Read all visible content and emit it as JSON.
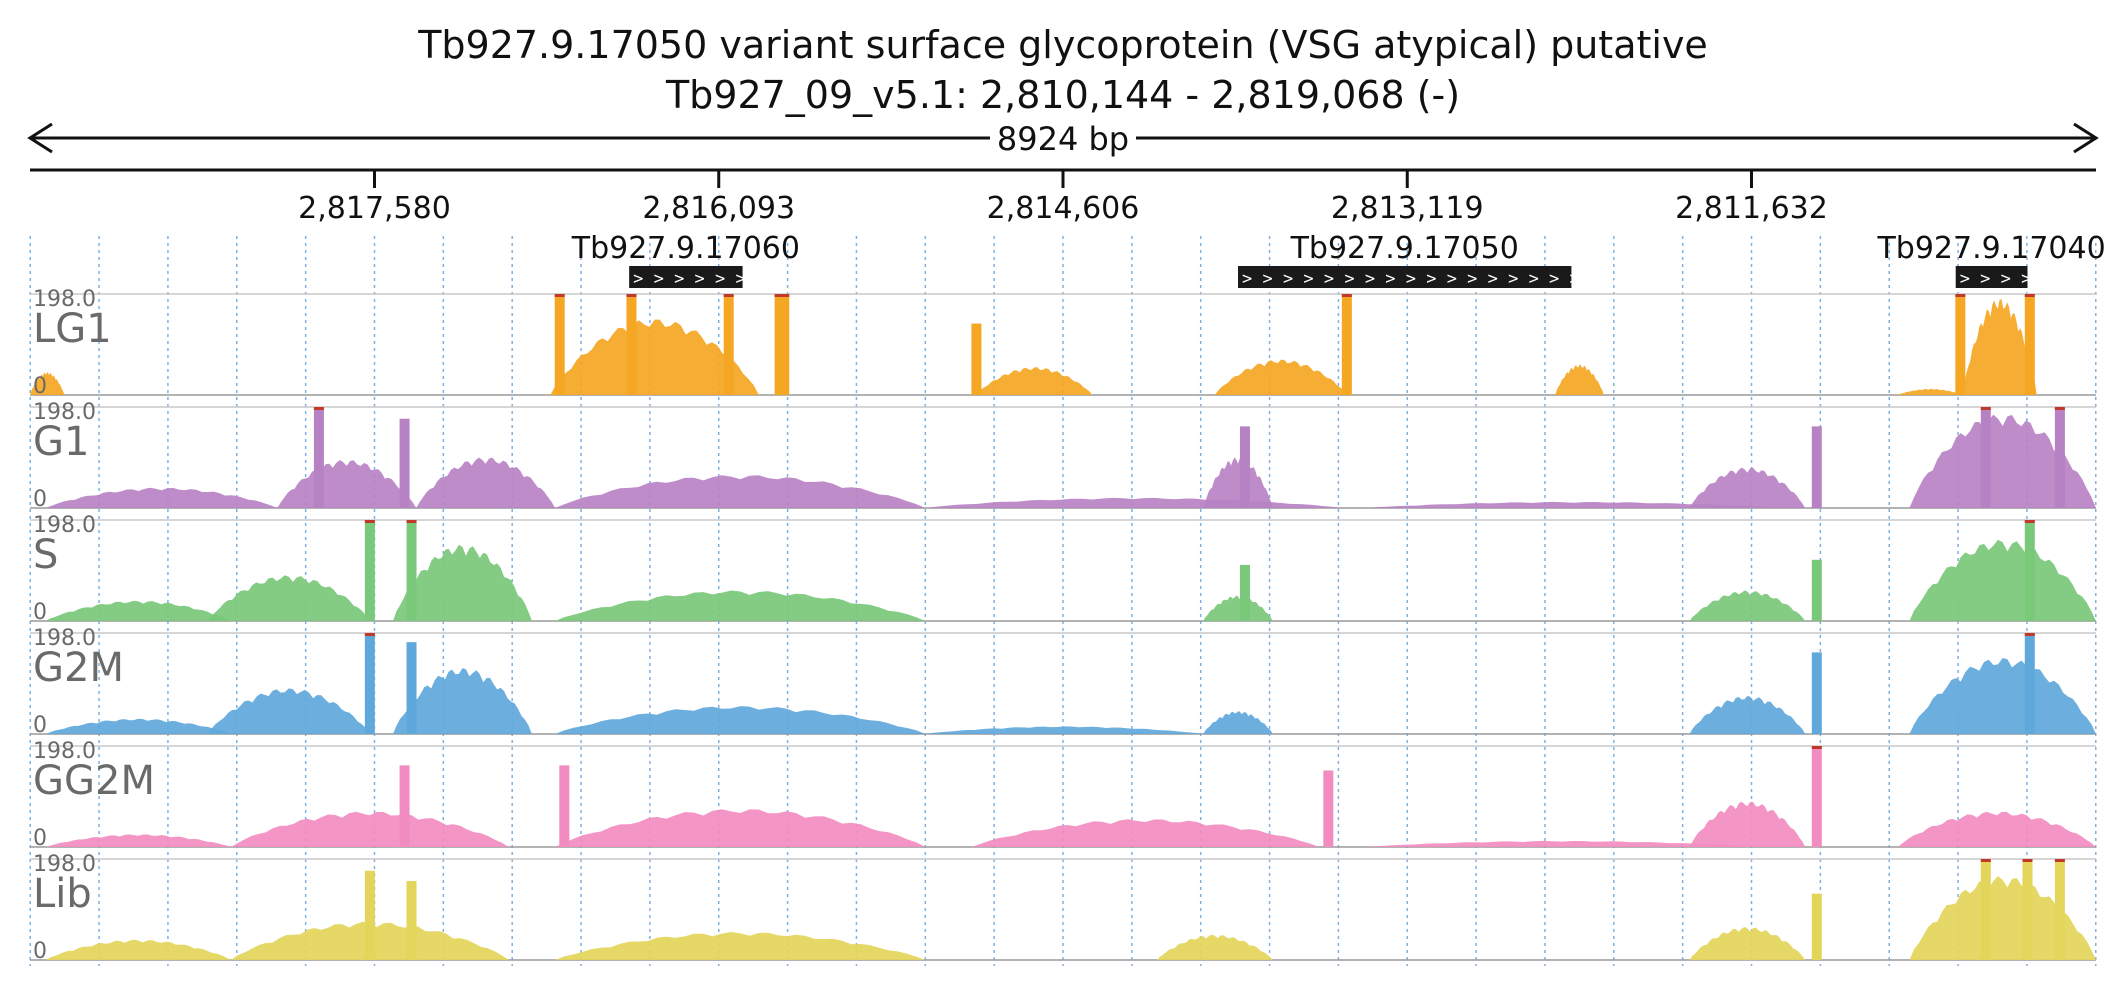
{
  "header": {
    "title_line1": "Tb927.9.17050  variant surface glycoprotein (VSG  atypical)  putative",
    "title_line2": "Tb927_09_v5.1: 2,810,144 - 2,819,068 (-)",
    "length_label": "8924 bp"
  },
  "chart_data": {
    "type": "area",
    "title": "Tb927.9.17050  variant surface glycoprotein (VSG  atypical)  putative",
    "subtitle": "Tb927_09_v5.1: 2,810,144 - 2,819,068 (-)",
    "xlabel": "",
    "ylabel": "",
    "x_start": 2819068,
    "x_end": 2810144,
    "x_reversed": true,
    "ticks": [
      {
        "pos": 2817580,
        "label": "2,817,580"
      },
      {
        "pos": 2816093,
        "label": "2,816,093"
      },
      {
        "pos": 2814606,
        "label": "2,814,606"
      },
      {
        "pos": 2813119,
        "label": "2,813,119"
      },
      {
        "pos": 2811632,
        "label": "2,811,632"
      }
    ],
    "grid": true,
    "genes": [
      {
        "name": "Tb927.9.17060",
        "start": 2816480,
        "end": 2815990,
        "arrows": "> > > > > >"
      },
      {
        "name": "Tb927.9.17050",
        "start": 2813850,
        "end": 2812410,
        "arrows": "> > > > > > > > > > > > > > > > > > >"
      },
      {
        "name": "Tb927.9.17040",
        "start": 2810750,
        "end": 2810440,
        "arrows": "> > > >"
      }
    ],
    "tracks": [
      {
        "name": "LG1",
        "color": "#f5a623",
        "ymax": 198.0,
        "ymax_label": "198.0",
        "ymin_label": "0",
        "features": [
          {
            "type": "bump",
            "start": 2819068,
            "end": 2818920,
            "peak": 45
          },
          {
            "type": "bump",
            "start": 2816820,
            "end": 2815920,
            "peak": 150
          },
          {
            "type": "spike",
            "pos": 2816780,
            "height": 198
          },
          {
            "type": "spike",
            "pos": 2816470,
            "height": 198
          },
          {
            "type": "spike",
            "pos": 2816050,
            "height": 198
          },
          {
            "type": "spike",
            "pos": 2815810,
            "height": 198
          },
          {
            "type": "spike",
            "pos": 2815830,
            "height": 198
          },
          {
            "type": "spike",
            "pos": 2814980,
            "height": 140
          },
          {
            "type": "bump",
            "start": 2814980,
            "end": 2814480,
            "peak": 55
          },
          {
            "type": "bump",
            "start": 2813950,
            "end": 2813380,
            "peak": 70
          },
          {
            "type": "spike",
            "pos": 2813380,
            "height": 198
          },
          {
            "type": "bump",
            "start": 2812480,
            "end": 2812270,
            "peak": 60
          },
          {
            "type": "bump",
            "start": 2811000,
            "end": 2810720,
            "peak": 12
          },
          {
            "type": "bump",
            "start": 2810720,
            "end": 2810400,
            "peak": 190
          },
          {
            "type": "spike",
            "pos": 2810730,
            "height": 198
          },
          {
            "type": "spike",
            "pos": 2810430,
            "height": 198
          }
        ]
      },
      {
        "name": "G1",
        "color": "#b782c4",
        "ymax": 198.0,
        "ymax_label": "198.0",
        "ymin_label": "0",
        "features": [
          {
            "type": "bump",
            "start": 2819000,
            "end": 2818000,
            "peak": 40
          },
          {
            "type": "bump",
            "start": 2818000,
            "end": 2817400,
            "peak": 95
          },
          {
            "type": "bump",
            "start": 2817400,
            "end": 2816800,
            "peak": 100
          },
          {
            "type": "bump",
            "start": 2816800,
            "end": 2815200,
            "peak": 65
          },
          {
            "type": "bump",
            "start": 2815200,
            "end": 2813400,
            "peak": 20
          },
          {
            "type": "bump",
            "start": 2814000,
            "end": 2813700,
            "peak": 100
          },
          {
            "type": "bump",
            "start": 2813300,
            "end": 2811500,
            "peak": 12
          },
          {
            "type": "bump",
            "start": 2811900,
            "end": 2811400,
            "peak": 80
          },
          {
            "type": "bump",
            "start": 2810950,
            "end": 2810144,
            "peak": 185
          },
          {
            "type": "spike",
            "pos": 2817820,
            "height": 198
          },
          {
            "type": "spike",
            "pos": 2817450,
            "height": 175
          },
          {
            "type": "spike",
            "pos": 2813820,
            "height": 160
          },
          {
            "type": "spike",
            "pos": 2811350,
            "height": 160
          },
          {
            "type": "spike",
            "pos": 2810620,
            "height": 198
          },
          {
            "type": "spike",
            "pos": 2810300,
            "height": 198
          }
        ]
      },
      {
        "name": "S",
        "color": "#7ac87a",
        "ymax": 198.0,
        "ymax_label": "198.0",
        "ymin_label": "0",
        "features": [
          {
            "type": "bump",
            "start": 2819000,
            "end": 2818200,
            "peak": 40
          },
          {
            "type": "bump",
            "start": 2818300,
            "end": 2817600,
            "peak": 90
          },
          {
            "type": "bump",
            "start": 2817500,
            "end": 2816900,
            "peak": 150
          },
          {
            "type": "bump",
            "start": 2816800,
            "end": 2815200,
            "peak": 60
          },
          {
            "type": "bump",
            "start": 2814000,
            "end": 2813700,
            "peak": 50
          },
          {
            "type": "bump",
            "start": 2811900,
            "end": 2811400,
            "peak": 60
          },
          {
            "type": "bump",
            "start": 2810950,
            "end": 2810144,
            "peak": 160
          },
          {
            "type": "spike",
            "pos": 2817600,
            "height": 198
          },
          {
            "type": "spike",
            "pos": 2817420,
            "height": 198
          },
          {
            "type": "spike",
            "pos": 2813820,
            "height": 110
          },
          {
            "type": "spike",
            "pos": 2811350,
            "height": 120
          },
          {
            "type": "spike",
            "pos": 2810430,
            "height": 198
          }
        ]
      },
      {
        "name": "G2M",
        "color": "#5fa8dc",
        "ymax": 198.0,
        "ymax_label": "198.0",
        "ymin_label": "0",
        "features": [
          {
            "type": "bump",
            "start": 2819000,
            "end": 2818200,
            "peak": 30
          },
          {
            "type": "bump",
            "start": 2818300,
            "end": 2817600,
            "peak": 90
          },
          {
            "type": "bump",
            "start": 2817500,
            "end": 2816900,
            "peak": 130
          },
          {
            "type": "bump",
            "start": 2816800,
            "end": 2815200,
            "peak": 55
          },
          {
            "type": "bump",
            "start": 2815200,
            "end": 2814000,
            "peak": 15
          },
          {
            "type": "bump",
            "start": 2814000,
            "end": 2813700,
            "peak": 45
          },
          {
            "type": "bump",
            "start": 2811900,
            "end": 2811400,
            "peak": 75
          },
          {
            "type": "bump",
            "start": 2810950,
            "end": 2810144,
            "peak": 150
          },
          {
            "type": "spike",
            "pos": 2817600,
            "height": 198
          },
          {
            "type": "spike",
            "pos": 2817420,
            "height": 180
          },
          {
            "type": "spike",
            "pos": 2811350,
            "height": 160
          },
          {
            "type": "spike",
            "pos": 2810430,
            "height": 198
          }
        ]
      },
      {
        "name": "GG2M",
        "color": "#f28cc0",
        "ymax": 198.0,
        "ymax_label": "198.0",
        "ymin_label": "0",
        "features": [
          {
            "type": "bump",
            "start": 2819000,
            "end": 2818200,
            "peak": 25
          },
          {
            "type": "bump",
            "start": 2818200,
            "end": 2817000,
            "peak": 70
          },
          {
            "type": "bump",
            "start": 2816800,
            "end": 2815200,
            "peak": 75
          },
          {
            "type": "bump",
            "start": 2815000,
            "end": 2813500,
            "peak": 55
          },
          {
            "type": "bump",
            "start": 2813300,
            "end": 2811600,
            "peak": 12
          },
          {
            "type": "bump",
            "start": 2811900,
            "end": 2811400,
            "peak": 90
          },
          {
            "type": "bump",
            "start": 2811000,
            "end": 2810144,
            "peak": 70
          },
          {
            "type": "spike",
            "pos": 2817450,
            "height": 160
          },
          {
            "type": "spike",
            "pos": 2816760,
            "height": 160
          },
          {
            "type": "spike",
            "pos": 2813460,
            "height": 150
          },
          {
            "type": "spike",
            "pos": 2811350,
            "height": 198
          }
        ]
      },
      {
        "name": "Lib",
        "color": "#e3d55a",
        "ymax": 198.0,
        "ymax_label": "198.0",
        "ymin_label": "0",
        "features": [
          {
            "type": "bump",
            "start": 2819000,
            "end": 2818200,
            "peak": 40
          },
          {
            "type": "bump",
            "start": 2818200,
            "end": 2817000,
            "peak": 75
          },
          {
            "type": "bump",
            "start": 2816800,
            "end": 2815200,
            "peak": 55
          },
          {
            "type": "bump",
            "start": 2814200,
            "end": 2813700,
            "peak": 50
          },
          {
            "type": "bump",
            "start": 2811900,
            "end": 2811400,
            "peak": 65
          },
          {
            "type": "bump",
            "start": 2810950,
            "end": 2810144,
            "peak": 165
          },
          {
            "type": "spike",
            "pos": 2817600,
            "height": 175
          },
          {
            "type": "spike",
            "pos": 2817420,
            "height": 155
          },
          {
            "type": "spike",
            "pos": 2811350,
            "height": 130
          },
          {
            "type": "spike",
            "pos": 2810620,
            "height": 198
          },
          {
            "type": "spike",
            "pos": 2810440,
            "height": 198
          },
          {
            "type": "spike",
            "pos": 2810300,
            "height": 198
          }
        ]
      }
    ]
  }
}
